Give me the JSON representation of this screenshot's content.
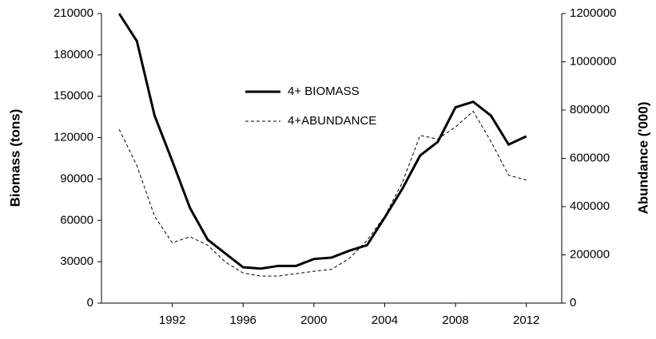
{
  "chart_data": {
    "type": "line",
    "ylabel": "Biomass (tons)",
    "y2label": "Abundance ('000)",
    "x": [
      1989,
      1990,
      1991,
      1992,
      1993,
      1994,
      1995,
      1996,
      1997,
      1998,
      1999,
      2000,
      2001,
      2002,
      2003,
      2004,
      2005,
      2006,
      2007,
      2008,
      2009,
      2010,
      2011,
      2012
    ],
    "series": [
      {
        "name": "4+ BIOMASS",
        "color": "#000000",
        "style": "solid",
        "width": 3,
        "values": [
          210000,
          190000,
          136000,
          103000,
          69000,
          46000,
          36000,
          26000,
          25000,
          27000,
          27000,
          32000,
          33000,
          38000,
          42000,
          62000,
          83000,
          107000,
          117000,
          142000,
          146000,
          136000,
          115000,
          121000
        ]
      },
      {
        "name": "4+ABUNDANCE",
        "color": "#000000",
        "style": "dashed",
        "width": 1,
        "axis": "y2",
        "values": [
          720000,
          570000,
          360000,
          250000,
          275000,
          240000,
          170000,
          125000,
          112000,
          112000,
          122000,
          132000,
          140000,
          185000,
          260000,
          360000,
          500000,
          695000,
          680000,
          730000,
          795000,
          670000,
          530000,
          510000
        ]
      }
    ],
    "xlim": [
      1988,
      2014
    ],
    "xticks": [
      1992,
      1996,
      2000,
      2004,
      2008,
      2012
    ],
    "ylim": [
      0,
      210000
    ],
    "yticks": [
      0,
      30000,
      60000,
      90000,
      120000,
      150000,
      180000,
      210000
    ],
    "y2lim": [
      0,
      1200000
    ],
    "y2ticks": [
      0,
      200000,
      400000,
      600000,
      800000,
      1000000,
      1200000
    ],
    "legend_position": "center"
  }
}
